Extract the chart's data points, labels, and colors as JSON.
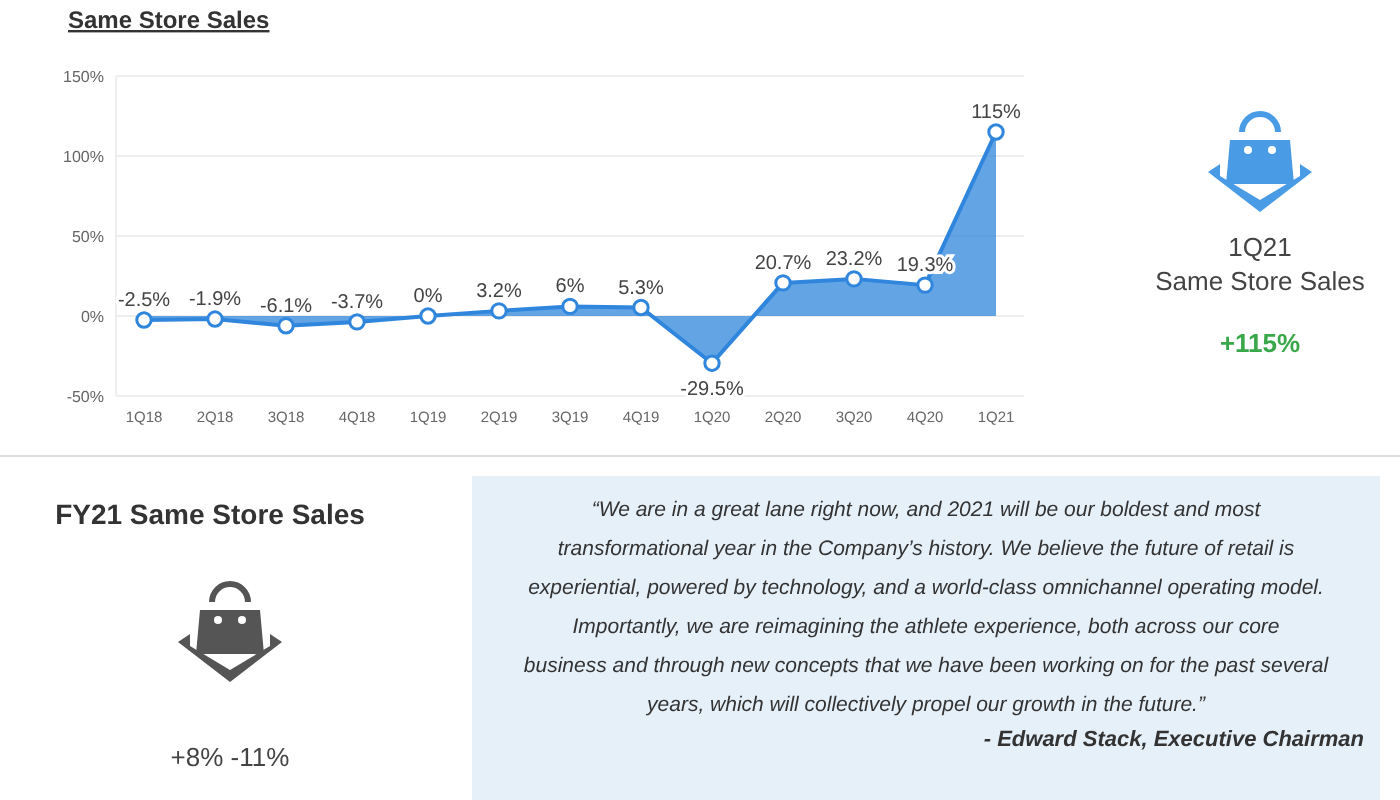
{
  "chart_data": [
    {
      "type": "area",
      "title": "Same Store Sales",
      "categories": [
        "1Q18",
        "2Q18",
        "3Q18",
        "4Q18",
        "1Q19",
        "2Q19",
        "3Q19",
        "4Q19",
        "1Q20",
        "2Q20",
        "3Q20",
        "4Q20",
        "1Q21"
      ],
      "series": [
        {
          "color": "#2f86dc",
          "values": [
            -2.5,
            -1.9,
            -6.1,
            -3.7,
            0,
            3.2,
            6,
            5.3,
            -29.5,
            20.7,
            23.2,
            19.3,
            115
          ],
          "value_labels": [
            "-2.5%",
            "-1.9%",
            "-6.1%",
            "-3.7%",
            "0%",
            "3.2%",
            "6%",
            "5.3%",
            "-29.5%",
            "20.7%",
            "23.2%",
            "19.3%",
            "115%"
          ]
        }
      ],
      "ylim": [
        -50,
        150
      ],
      "yticks": [
        {
          "value": -50,
          "label": "-50%"
        },
        {
          "value": 0,
          "label": "0%"
        },
        {
          "value": 50,
          "label": "50%"
        },
        {
          "value": 100,
          "label": "100%"
        },
        {
          "value": 150,
          "label": "150%"
        }
      ],
      "grid": "y",
      "marker": "circle",
      "line_style": "solid"
    },
    {
      "type": "other",
      "title": "1Q21",
      "subtitle": "Same Store Sales",
      "annotations": [
        "+115%"
      ]
    },
    {
      "type": "other",
      "title": "FY21 Same Store Sales",
      "annotations": [
        "+8% -11%"
      ]
    },
    {
      "type": "other",
      "annotations": [
        "“We are in a great lane right now, and 2021 will be our boldest and most transformational year in the Company’s history. We believe the future of retail is experiential, powered by technology, and a world-class omnichannel operating model. Importantly, we are reimagining the athlete experience, both across our core business and through new concepts that we have been working on for the past several years, which will collectively propel our growth in the future.”",
        "- Edward Stack, Executive Chairman"
      ]
    }
  ]
}
